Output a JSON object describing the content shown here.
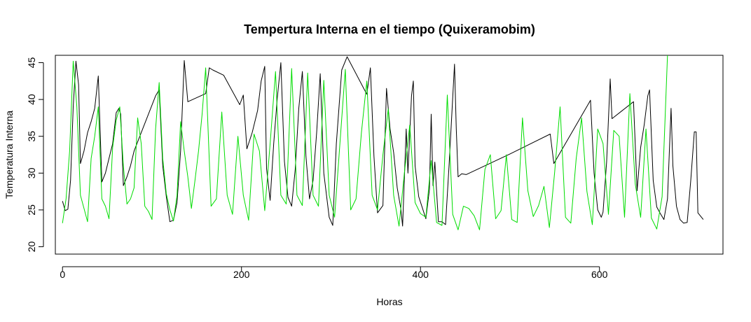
{
  "chart_data": {
    "type": "line",
    "title": "Tempertura Interna en el tiempo (Quixeramobim)",
    "xlabel": "Horas",
    "ylabel": "Temperatura Interna",
    "xlim": [
      -8,
      738
    ],
    "ylim": [
      19,
      46
    ],
    "x_ticks": [
      0,
      200,
      400,
      600
    ],
    "y_ticks": [
      20,
      25,
      30,
      35,
      40,
      45
    ],
    "grid": false,
    "legend": "none",
    "series": [
      {
        "color": "#000000",
        "points": [
          [
            0,
            26.2
          ],
          [
            3,
            24.9
          ],
          [
            6,
            25.1
          ],
          [
            9,
            29
          ],
          [
            12,
            39
          ],
          [
            15,
            45.2
          ],
          [
            18,
            42
          ],
          [
            20,
            31.3
          ],
          [
            24,
            33
          ],
          [
            28,
            35.5
          ],
          [
            32,
            37
          ],
          [
            36,
            38.8
          ],
          [
            40,
            43.2
          ],
          [
            44,
            28.8
          ],
          [
            48,
            30
          ],
          [
            52,
            32
          ],
          [
            56,
            34
          ],
          [
            60,
            38.2
          ],
          [
            63,
            38.8
          ],
          [
            65,
            38
          ],
          [
            68,
            28.3
          ],
          [
            72,
            29.5
          ],
          [
            76,
            31
          ],
          [
            80,
            33
          ],
          [
            88,
            35.5
          ],
          [
            96,
            38
          ],
          [
            104,
            40.5
          ],
          [
            108,
            41.3
          ],
          [
            112,
            31
          ],
          [
            116,
            26.8
          ],
          [
            120,
            23.4
          ],
          [
            124,
            23.6
          ],
          [
            128,
            26
          ],
          [
            132,
            33
          ],
          [
            136,
            45.3
          ],
          [
            140,
            39.7
          ],
          [
            160,
            40.8
          ],
          [
            164,
            44.3
          ],
          [
            168,
            44
          ],
          [
            180,
            43.3
          ],
          [
            198,
            39.3
          ],
          [
            202,
            40.6
          ],
          [
            206,
            33.3
          ],
          [
            212,
            35.5
          ],
          [
            218,
            38.5
          ],
          [
            222,
            42.5
          ],
          [
            226,
            44.5
          ],
          [
            228,
            30.6
          ],
          [
            232,
            26.3
          ],
          [
            236,
            34
          ],
          [
            240,
            40.2
          ],
          [
            244,
            45
          ],
          [
            248,
            31.6
          ],
          [
            252,
            26.7
          ],
          [
            256,
            25.5
          ],
          [
            260,
            30.5
          ],
          [
            264,
            38.8
          ],
          [
            268,
            43.8
          ],
          [
            272,
            32.3
          ],
          [
            276,
            26.5
          ],
          [
            280,
            29
          ],
          [
            284,
            35.5
          ],
          [
            288,
            43.5
          ],
          [
            292,
            30
          ],
          [
            298,
            24
          ],
          [
            302,
            22.9
          ],
          [
            306,
            34
          ],
          [
            312,
            44
          ],
          [
            318,
            45.8
          ],
          [
            340,
            40.7
          ],
          [
            344,
            44.3
          ],
          [
            348,
            32.3
          ],
          [
            352,
            24.6
          ],
          [
            358,
            25.6
          ],
          [
            362,
            41.5
          ],
          [
            366,
            36
          ],
          [
            370,
            32.8
          ],
          [
            374,
            28
          ],
          [
            378,
            25.2
          ],
          [
            380,
            22.8
          ],
          [
            384,
            36
          ],
          [
            386,
            30
          ],
          [
            390,
            40.5
          ],
          [
            392,
            42.5
          ],
          [
            394,
            31
          ],
          [
            398,
            26.8
          ],
          [
            402,
            25.3
          ],
          [
            406,
            23.8
          ],
          [
            410,
            27.8
          ],
          [
            412,
            38
          ],
          [
            414,
            28.3
          ],
          [
            416,
            31.5
          ],
          [
            420,
            23.4
          ],
          [
            424,
            23.4
          ],
          [
            428,
            23
          ],
          [
            432,
            31.2
          ],
          [
            438,
            44.8
          ],
          [
            440,
            36
          ],
          [
            442,
            29.5
          ],
          [
            446,
            29.9
          ],
          [
            451,
            29.8
          ],
          [
            500,
            32.6
          ],
          [
            545,
            35.3
          ],
          [
            549,
            31.3
          ],
          [
            590,
            39.9
          ],
          [
            594,
            30
          ],
          [
            598,
            25
          ],
          [
            602,
            24
          ],
          [
            604,
            24.7
          ],
          [
            608,
            31.5
          ],
          [
            612,
            42.8
          ],
          [
            614,
            37.4
          ],
          [
            638,
            39.7
          ],
          [
            642,
            27.6
          ],
          [
            646,
            33.5
          ],
          [
            650,
            36.6
          ],
          [
            654,
            40.5
          ],
          [
            656,
            41.3
          ],
          [
            660,
            29
          ],
          [
            664,
            25.4
          ],
          [
            668,
            24.5
          ],
          [
            672,
            23.7
          ],
          [
            676,
            26.5
          ],
          [
            680,
            38.8
          ],
          [
            682,
            31
          ],
          [
            686,
            25.5
          ],
          [
            690,
            23.7
          ],
          [
            694,
            23.2
          ],
          [
            698,
            23.3
          ],
          [
            702,
            29
          ],
          [
            706,
            35.6
          ],
          [
            708,
            35.6
          ],
          [
            710,
            24.6
          ],
          [
            716,
            23.7
          ]
        ]
      },
      {
        "color": "#00dd00",
        "points": [
          [
            0,
            23.2
          ],
          [
            4,
            26.5
          ],
          [
            8,
            33
          ],
          [
            12,
            45.2
          ],
          [
            16,
            39
          ],
          [
            20,
            27
          ],
          [
            24,
            25.2
          ],
          [
            28,
            23.4
          ],
          [
            32,
            32
          ],
          [
            36,
            35
          ],
          [
            40,
            39
          ],
          [
            44,
            26.5
          ],
          [
            48,
            25.5
          ],
          [
            52,
            23.8
          ],
          [
            56,
            33.5
          ],
          [
            60,
            37.2
          ],
          [
            64,
            39
          ],
          [
            68,
            31
          ],
          [
            72,
            25.8
          ],
          [
            76,
            26.5
          ],
          [
            80,
            28
          ],
          [
            84,
            37.5
          ],
          [
            88,
            34
          ],
          [
            92,
            25.5
          ],
          [
            96,
            24.8
          ],
          [
            100,
            23.7
          ],
          [
            104,
            36
          ],
          [
            108,
            42.3
          ],
          [
            112,
            32
          ],
          [
            116,
            27.2
          ],
          [
            120,
            25
          ],
          [
            124,
            23.5
          ],
          [
            128,
            27
          ],
          [
            132,
            37
          ],
          [
            136,
            33
          ],
          [
            140,
            29.5
          ],
          [
            144,
            25.2
          ],
          [
            148,
            29
          ],
          [
            152,
            33
          ],
          [
            156,
            38
          ],
          [
            160,
            44.3
          ],
          [
            166,
            25.5
          ],
          [
            172,
            26.5
          ],
          [
            178,
            38.3
          ],
          [
            184,
            27
          ],
          [
            190,
            24.4
          ],
          [
            196,
            35
          ],
          [
            202,
            27
          ],
          [
            208,
            23.6
          ],
          [
            214,
            35.3
          ],
          [
            220,
            33
          ],
          [
            226,
            24.9
          ],
          [
            232,
            34
          ],
          [
            238,
            43.8
          ],
          [
            244,
            27
          ],
          [
            250,
            25.8
          ],
          [
            256,
            44.2
          ],
          [
            262,
            27
          ],
          [
            268,
            25.6
          ],
          [
            274,
            43.6
          ],
          [
            280,
            27
          ],
          [
            286,
            25.5
          ],
          [
            292,
            42.6
          ],
          [
            298,
            27
          ],
          [
            304,
            24
          ],
          [
            310,
            34
          ],
          [
            316,
            44.1
          ],
          [
            322,
            25
          ],
          [
            328,
            26.5
          ],
          [
            334,
            35.5
          ],
          [
            340,
            42.5
          ],
          [
            346,
            27
          ],
          [
            352,
            25
          ],
          [
            358,
            32.5
          ],
          [
            364,
            38.7
          ],
          [
            370,
            27
          ],
          [
            376,
            22.8
          ],
          [
            382,
            30
          ],
          [
            388,
            36.5
          ],
          [
            394,
            26
          ],
          [
            400,
            24.5
          ],
          [
            406,
            24
          ],
          [
            412,
            31.7
          ],
          [
            418,
            23.3
          ],
          [
            424,
            22.9
          ],
          [
            430,
            40.6
          ],
          [
            436,
            24.4
          ],
          [
            442,
            22.3
          ],
          [
            448,
            25.5
          ],
          [
            454,
            25.2
          ],
          [
            460,
            24.2
          ],
          [
            466,
            22.3
          ],
          [
            472,
            30.5
          ],
          [
            478,
            32.5
          ],
          [
            484,
            23.8
          ],
          [
            490,
            24.9
          ],
          [
            496,
            32.5
          ],
          [
            502,
            23.7
          ],
          [
            508,
            23.3
          ],
          [
            514,
            37.5
          ],
          [
            520,
            27.6
          ],
          [
            526,
            24.1
          ],
          [
            532,
            25.6
          ],
          [
            538,
            28.2
          ],
          [
            544,
            22.6
          ],
          [
            550,
            30.2
          ],
          [
            556,
            39
          ],
          [
            562,
            24
          ],
          [
            568,
            23.2
          ],
          [
            574,
            32
          ],
          [
            580,
            37.5
          ],
          [
            586,
            27.5
          ],
          [
            592,
            23
          ],
          [
            598,
            36
          ],
          [
            604,
            34
          ],
          [
            610,
            24.4
          ],
          [
            616,
            35.8
          ],
          [
            622,
            35
          ],
          [
            628,
            24
          ],
          [
            634,
            40.8
          ],
          [
            640,
            28.5
          ],
          [
            646,
            24
          ],
          [
            652,
            36
          ],
          [
            658,
            23.9
          ],
          [
            664,
            22.4
          ],
          [
            670,
            26.8
          ],
          [
            676,
            46
          ]
        ]
      }
    ]
  }
}
